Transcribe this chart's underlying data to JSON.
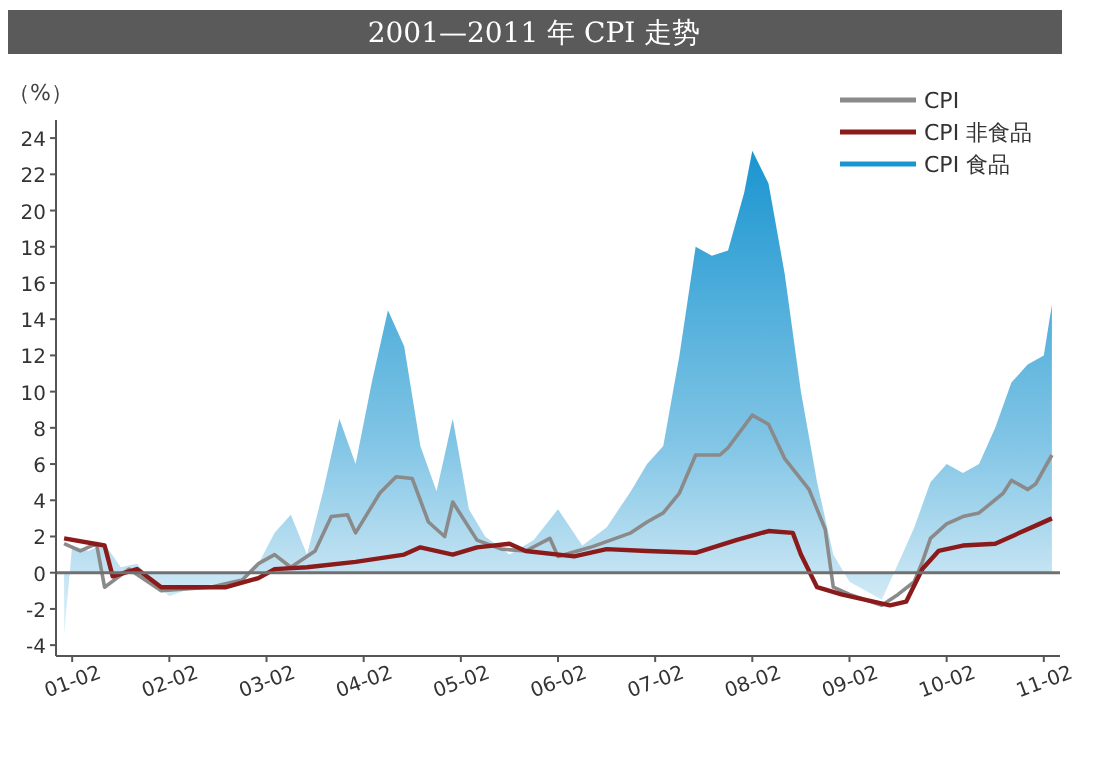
{
  "chart_data": {
    "type": "line",
    "title": "2001—2011 年 CPI 走势",
    "ylabel": "（%）",
    "xlim": [
      "2000-12",
      "2011-04"
    ],
    "ylim": [
      -4.6,
      25
    ],
    "xticks": [
      {
        "value": "2001-02",
        "label": "01-02"
      },
      {
        "value": "2002-02",
        "label": "02-02"
      },
      {
        "value": "2003-02",
        "label": "03-02"
      },
      {
        "value": "2004-02",
        "label": "04-02"
      },
      {
        "value": "2005-02",
        "label": "05-02"
      },
      {
        "value": "2006-02",
        "label": "06-02"
      },
      {
        "value": "2007-02",
        "label": "07-02"
      },
      {
        "value": "2008-02",
        "label": "08-02"
      },
      {
        "value": "2009-02",
        "label": "09-02"
      },
      {
        "value": "2010-02",
        "label": "10-02"
      },
      {
        "value": "2011-02",
        "label": "11-02"
      }
    ],
    "yticks": [
      -4,
      -2,
      0,
      2,
      4,
      6,
      8,
      10,
      12,
      14,
      16,
      18,
      20,
      22,
      24
    ],
    "legend": "top right",
    "grid": false,
    "ref_lines": [
      {
        "axis": "y",
        "value": 0,
        "color": "#707070"
      }
    ],
    "series": [
      {
        "name": "CPI 食品",
        "type": "area",
        "color": "#1a95d0",
        "x": [
          "2001-01",
          "2001-02",
          "2001-04",
          "2001-06",
          "2001-08",
          "2001-10",
          "2001-12",
          "2002-02",
          "2002-05",
          "2002-08",
          "2002-11",
          "2003-01",
          "2003-03",
          "2003-05",
          "2003-07",
          "2003-09",
          "2003-11",
          "2004-01",
          "2004-03",
          "2004-05",
          "2004-07",
          "2004-09",
          "2004-11",
          "2005-01",
          "2005-03",
          "2005-05",
          "2005-08",
          "2005-11",
          "2006-02",
          "2006-05",
          "2006-08",
          "2006-11",
          "2007-01",
          "2007-03",
          "2007-05",
          "2007-07",
          "2007-09",
          "2007-11",
          "2008-01",
          "2008-02",
          "2008-04",
          "2008-06",
          "2008-08",
          "2008-10",
          "2008-12",
          "2009-02",
          "2009-04",
          "2009-06",
          "2009-08",
          "2009-10",
          "2009-12",
          "2010-02",
          "2010-04",
          "2010-06",
          "2010-08",
          "2010-10",
          "2010-12",
          "2011-02",
          "2011-03"
        ],
        "values": [
          -3.5,
          1.5,
          1.2,
          1.6,
          0.3,
          0.5,
          -0.5,
          -1.3,
          -0.8,
          -0.6,
          -0.5,
          0.5,
          2.2,
          3.2,
          1.0,
          4.5,
          8.5,
          6.0,
          10.5,
          14.5,
          12.5,
          7.0,
          4.5,
          8.5,
          3.5,
          2.0,
          1.0,
          1.8,
          3.5,
          1.5,
          2.5,
          4.5,
          6.0,
          7.0,
          12.0,
          18.0,
          17.5,
          17.8,
          21.0,
          23.3,
          21.5,
          16.5,
          10.0,
          5.0,
          1.0,
          -0.5,
          -1.0,
          -1.5,
          0.5,
          2.5,
          5.0,
          6.0,
          5.5,
          6.0,
          8.0,
          10.5,
          11.5,
          12.0,
          14.8
        ]
      },
      {
        "name": "CPI",
        "color": "#8a8a8a",
        "x": [
          "2001-01",
          "2001-03",
          "2001-05",
          "2001-06",
          "2001-09",
          "2002-01",
          "2002-07",
          "2002-11",
          "2003-01",
          "2003-03",
          "2003-05",
          "2003-08",
          "2003-10",
          "2003-12",
          "2004-01",
          "2004-04",
          "2004-06",
          "2004-08",
          "2004-10",
          "2004-12",
          "2005-01",
          "2005-04",
          "2005-07",
          "2005-10",
          "2006-01",
          "2006-02",
          "2006-06",
          "2006-11",
          "2007-01",
          "2007-03",
          "2007-05",
          "2007-07",
          "2007-10",
          "2007-11",
          "2008-02",
          "2008-04",
          "2008-06",
          "2008-09",
          "2008-11",
          "2008-12",
          "2009-02",
          "2009-04",
          "2009-06",
          "2009-08",
          "2009-10",
          "2009-11",
          "2009-12",
          "2010-02",
          "2010-04",
          "2010-06",
          "2010-09",
          "2010-10",
          "2010-12",
          "2011-01",
          "2011-03"
        ],
        "values": [
          1.6,
          1.2,
          1.6,
          -0.8,
          0.2,
          -1.0,
          -0.8,
          -0.4,
          0.5,
          1.0,
          0.3,
          1.2,
          3.1,
          3.2,
          2.2,
          4.4,
          5.3,
          5.2,
          2.8,
          2.0,
          3.9,
          1.8,
          1.3,
          1.2,
          1.9,
          0.9,
          1.4,
          2.2,
          2.8,
          3.3,
          4.4,
          6.5,
          6.5,
          6.9,
          8.7,
          8.2,
          6.3,
          4.6,
          2.4,
          -0.8,
          -1.2,
          -1.5,
          -1.8,
          -1.2,
          -0.5,
          0.6,
          1.9,
          2.7,
          3.1,
          3.3,
          4.4,
          5.1,
          4.6,
          4.9,
          6.5
        ]
      },
      {
        "name": "CPI 非食品",
        "color": "#8b1a1a",
        "x": [
          "2001-01",
          "2001-06",
          "2001-07",
          "2001-10",
          "2002-01",
          "2002-09",
          "2003-01",
          "2003-03",
          "2003-07",
          "2004-01",
          "2004-07",
          "2004-09",
          "2005-01",
          "2005-04",
          "2005-08",
          "2005-10",
          "2006-04",
          "2006-08",
          "2007-01",
          "2007-07",
          "2007-12",
          "2008-04",
          "2008-07",
          "2008-08",
          "2008-10",
          "2009-01",
          "2009-07",
          "2009-09",
          "2009-11",
          "2010-01",
          "2010-04",
          "2010-08",
          "2010-11",
          "2011-01",
          "2011-03"
        ],
        "values": [
          1.9,
          1.5,
          -0.2,
          0.2,
          -0.8,
          -0.8,
          -0.3,
          0.2,
          0.3,
          0.6,
          1.0,
          1.4,
          1.0,
          1.4,
          1.6,
          1.2,
          0.9,
          1.3,
          1.2,
          1.1,
          1.8,
          2.3,
          2.2,
          1.0,
          -0.8,
          -1.2,
          -1.8,
          -1.6,
          0.2,
          1.2,
          1.5,
          1.6,
          2.2,
          2.6,
          3.0
        ]
      }
    ]
  }
}
